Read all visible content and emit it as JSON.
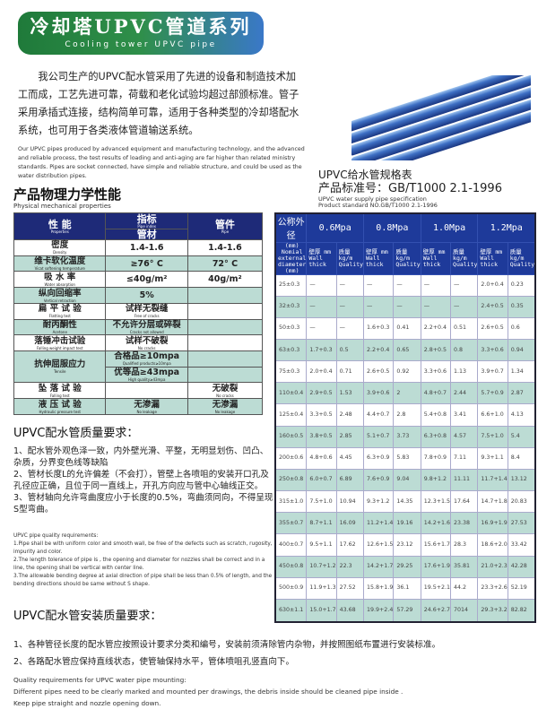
{
  "banner": {
    "title_cn": "冷却塔UPVC管道系列",
    "title_en": "Cooling tower UPVC pipe"
  },
  "intro": {
    "cn": "　　我公司生产的UPVC配水管采用了先进的设备和制造技术加工而成，工艺先进可靠，荷载和老化试验均超过部颁标准。管子采用承插式连接，结构简单可靠，适用于各种类型的冷却塔配水系统，也可用于各类液体管道输送系统。",
    "en": "Our UPVC pipes produced by advanced equipment and manufacturing technology, and the advanced and reliable process, the test results of loading and anti-aging are far higher than related ministry standards. Pipes are socket connected, have simple and reliable structure, and could be used as the water distribution pipes."
  },
  "physical": {
    "title_cn": "产品物理力学性能",
    "title_en": "Physical mechanical properties",
    "header": {
      "property": "性 能",
      "property_en": "Properties",
      "index": "指标",
      "index_en": "Pipe index",
      "pipe": "管材",
      "fitting": "管件",
      "fitting_en": "Pipe"
    },
    "rows": [
      {
        "p": "密度",
        "pe": "Density",
        "a": "1.4-1.6",
        "ae": "",
        "b": "1.4-1.6"
      },
      {
        "p": "维卡软化温度",
        "pe": "Vicat softening temperature",
        "a": "≥76° C",
        "ae": "",
        "b": "72° C"
      },
      {
        "p": "吸 水 率",
        "pe": "Water absorption",
        "a": "≤40g/m²",
        "ae": "",
        "b": "40g/m²"
      },
      {
        "p": "纵向回缩率",
        "pe": "Vertical retraction",
        "a": "5%",
        "ae": "",
        "b": ""
      },
      {
        "p": "扁 平 试 验",
        "pe": "Flatting test",
        "a": "试样无裂缝",
        "ae": "Free of cracks",
        "b": ""
      },
      {
        "p": "耐丙酮性",
        "pe": "Acetone",
        "a": "不允许分层或碎裂",
        "ae": "Cracks not allowed",
        "b": ""
      },
      {
        "p": "落锤冲击试验",
        "pe": "Falling weight impact test",
        "a": "试样不破裂",
        "ae": "No cracks",
        "b": ""
      },
      {
        "p": "抗伸屈服应力",
        "pe": "Tensile",
        "a": "合格品≥10mpa",
        "ae": "Qualified products≥10mpa",
        "b": "",
        "a2": "优等品≥43mpa",
        "ae2": "High quality≥43mpa",
        "b2": ""
      },
      {
        "p": "坠 落 试 验",
        "pe": "Falling test",
        "a": "",
        "ae": "",
        "b": "无破裂",
        "be": "No cracks"
      },
      {
        "p": "液 压 试 验",
        "pe": "Hydraulic pressure test",
        "a": "无渗漏",
        "ae": "No leakage",
        "b": "无渗漏",
        "be": "No leakage"
      }
    ]
  },
  "spec": {
    "title_cn": "UPVC给水管规格表",
    "standard_cn": "产品标准号：GB/T1000 2.1-1996",
    "title_en": "UPVC water supply pipe specification",
    "standard_en": "Product standard NO.GB/T1000 2.1-1996",
    "col0": "公称外径",
    "col0_sub": "(mm) Nomial external diameter (mm)",
    "pressures": [
      "0.6Mpa",
      "0.8Mpa",
      "1.0Mpa",
      "1.2Mpa"
    ],
    "wall": "壁厚 mm Wall thick",
    "quality": "质量 kg/m Quality",
    "rows": [
      [
        "25±0.3",
        "—",
        "—",
        "—",
        "—",
        "—",
        "—",
        "2.0+0.4",
        "0.23"
      ],
      [
        "32±0.3",
        "—",
        "—",
        "—",
        "—",
        "—",
        "—",
        "2.4+0.5",
        "0.35"
      ],
      [
        "50±0.3",
        "—",
        "—",
        "1.6+0.3",
        "0.41",
        "2.2+0.4",
        "0.51",
        "2.6+0.5",
        "0.6"
      ],
      [
        "63±0.3",
        "1.7+0.3",
        "0.5",
        "2.2+0.4",
        "0.65",
        "2.8+0.5",
        "0.8",
        "3.3+0.6",
        "0.94"
      ],
      [
        "75±0.3",
        "2.0+0.4",
        "0.71",
        "2.6+0.5",
        "0.92",
        "3.3+0.6",
        "1.13",
        "3.9+0.7",
        "1.34"
      ],
      [
        "110±0.4",
        "2.9+0.5",
        "1.53",
        "3.9+0.6",
        "2",
        "4.8+0.7",
        "2.44",
        "5.7+0.9",
        "2.87"
      ],
      [
        "125±0.4",
        "3.3+0.5",
        "2.48",
        "4.4+0.7",
        "2.8",
        "5.4+0.8",
        "3.41",
        "6.6+1.0",
        "4.13"
      ],
      [
        "160±0.5",
        "3.8+0.5",
        "2.85",
        "5.1+0.7",
        "3.73",
        "6.3+0.8",
        "4.57",
        "7.5+1.0",
        "5.4"
      ],
      [
        "200±0.6",
        "4.8+0.6",
        "4.45",
        "6.3+0.9",
        "5.83",
        "7.8+0.9",
        "7.11",
        "9.3+1.1",
        "8.4"
      ],
      [
        "250±0.8",
        "6.0+0.7",
        "6.89",
        "7.6+0.9",
        "9.04",
        "9.8+1.2",
        "11.11",
        "11.7+1.4",
        "13.12"
      ],
      [
        "315±1.0",
        "7.5+1.0",
        "10.94",
        "9.3+1.2",
        "14.35",
        "12.3+1.5",
        "17.64",
        "14.7+1.8",
        "20.83"
      ],
      [
        "355±0.7",
        "8.7+1.1",
        "16.09",
        "11.2+1.4",
        "19.16",
        "14.2+1.6",
        "23.38",
        "16.9+1.9",
        "27.53"
      ],
      [
        "400±0.7",
        "9.5+1.1",
        "17.62",
        "12.6+1.5",
        "23.12",
        "15.6+1.7",
        "28.3",
        "18.6+2.0",
        "33.42"
      ],
      [
        "450±0.8",
        "10.7+1.2",
        "22.3",
        "14.2+1.7",
        "29.25",
        "17.6+1.9",
        "35.81",
        "21.0+2.3",
        "42.28"
      ],
      [
        "500±0.9",
        "11.9+1.3",
        "27.52",
        "15.8+1.9",
        "36.1",
        "19.5+2.1",
        "44.2",
        "23.3+2.6",
        "52.19"
      ],
      [
        "630±1.1",
        "15.0+1.7",
        "43.68",
        "19.9+2.4",
        "57.29",
        "24.6+2.7",
        "7014",
        "29.3+3.2",
        "82.82"
      ]
    ]
  },
  "quality": {
    "title": "UPVC配水管质量要求：",
    "cn": [
      "1、配水管外观色泽一致，内外壁光滑、平整，无明显划伤、凹凸、杂质，分界变色线等缺陷",
      "2、管材长度L的允许偏差（不会打），管壁上各喷咀的安装开口孔及孔径应正确，且位于同一直线上，开孔方向应与管中心轴线正交。",
      "3、管材轴向允许弯曲度应小于长度的0.5%，弯曲须同向，不得呈现S型弯曲。"
    ],
    "en": [
      "UPVC pipe quality requirements:",
      "1.Pipe shall be with uniform color and smooth wall, be free of the defects such as scratch, rugosity, impurity and color.",
      "2.The length tolerance of pipe is  , the opening and diameter for nozzles shall be correct and in a line, the opening shall be vertical with center line.",
      "3.The allowable bending degree at axial direction of pipe shall be less than 0.5% of length, and the bending directions should be same without S shape."
    ]
  },
  "install": {
    "title": "UPVC配水管安装质量要求：",
    "cn": [
      "1、各种管径长度的配水管应按照设计要求分类和编号，安装前须清除管内杂物，并按照图纸布置进行安装标准。",
      "2、各路配水管应保持直线状态，使管轴保持水平，管体喷咀孔竖直向下。"
    ],
    "en": [
      "Quality requirements for UPVC water pipe mounting:",
      "Different pipes need to be clearly marked and mounted per drawings, the debris inside should be cleaned pipe inside .",
      "Keep pipe straight and nozzle opening down."
    ]
  },
  "colors": {
    "header_navy": "#1e2a78",
    "row_teal": "#bcdcd4",
    "banner_green": "#1f7a3a",
    "banner_blue": "#3a78c8"
  }
}
